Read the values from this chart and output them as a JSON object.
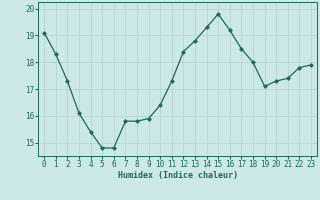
{
  "x": [
    0,
    1,
    2,
    3,
    4,
    5,
    6,
    7,
    8,
    9,
    10,
    11,
    12,
    13,
    14,
    15,
    16,
    17,
    18,
    19,
    20,
    21,
    22,
    23
  ],
  "y": [
    19.1,
    18.3,
    17.3,
    16.1,
    15.4,
    14.8,
    14.8,
    15.8,
    15.8,
    15.9,
    16.4,
    17.3,
    18.4,
    18.8,
    19.3,
    19.8,
    19.2,
    18.5,
    18.0,
    17.1,
    17.3,
    17.4,
    17.8,
    17.9
  ],
  "line_color": "#1a6b5a",
  "marker": "D",
  "marker_size": 2,
  "bg_color": "#cde8e8",
  "grid_color": "#b8d4d4",
  "xlabel": "Humidex (Indice chaleur)",
  "ylim": [
    14.5,
    20.25
  ],
  "xlim": [
    -0.5,
    23.5
  ],
  "yticks": [
    15,
    16,
    17,
    18,
    19,
    20
  ],
  "xticks": [
    0,
    1,
    2,
    3,
    4,
    5,
    6,
    7,
    8,
    9,
    10,
    11,
    12,
    13,
    14,
    15,
    16,
    17,
    18,
    19,
    20,
    21,
    22,
    23
  ],
  "tick_color": "#1a6b5a",
  "label_fontsize": 6,
  "tick_fontsize": 5.5,
  "linewidth": 0.9
}
